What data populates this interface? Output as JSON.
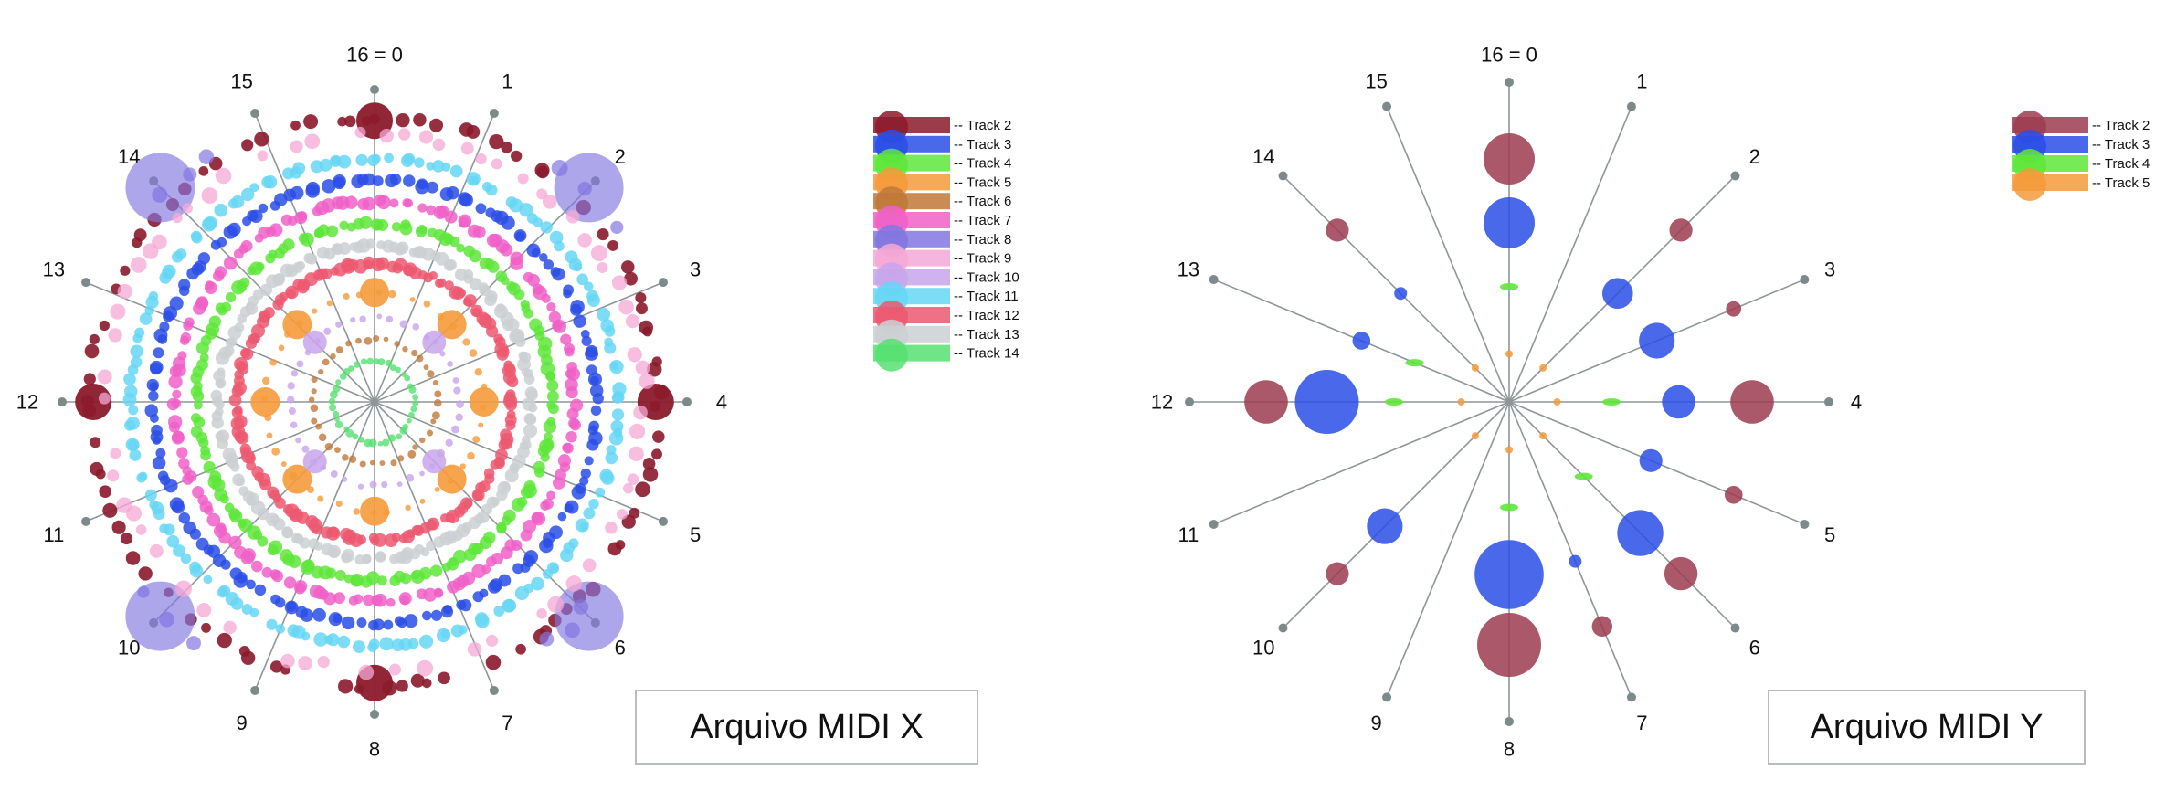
{
  "captions": {
    "left": "Arquivo MIDI X",
    "right": "Arquivo MIDI Y"
  },
  "chart_data": [
    {
      "type": "scatter",
      "subtype": "radial-beat-plot",
      "title": "",
      "caption": "Arquivo MIDI X",
      "spoke_labels": [
        "16 = 0",
        "1",
        "2",
        "3",
        "4",
        "5",
        "6",
        "7",
        "8",
        "9",
        "10",
        "11",
        "12",
        "13",
        "14",
        "15"
      ],
      "legend": {
        "placement": "right",
        "entries": [
          "Track 2",
          "Track 3",
          "Track 4",
          "Track 5",
          "Track 6",
          "Track 7",
          "Track 8",
          "Track 9",
          "Track 10",
          "Track 11",
          "Track 12",
          "Track 13",
          "Track 14"
        ]
      },
      "series_colors": {
        "Track 2": "#8b1a2b",
        "Track 3": "#2a4de6",
        "Track 4": "#5ee63a",
        "Track 5": "#f59a3a",
        "Track 6": "#c07838",
        "Track 7": "#f060c8",
        "Track 8": "#8276e0",
        "Track 9": "#f5a8d6",
        "Track 10": "#c8a4ec",
        "Track 11": "#66d6f5",
        "Track 12": "#ec5870",
        "Track 13": "#cdd0d2",
        "Track 14": "#56e070"
      },
      "series": [
        {
          "name": "Track 2",
          "pattern": "ring",
          "ring_level": 0.91,
          "density": "dense-arcs"
        },
        {
          "name": "Track 8",
          "pattern": "ring",
          "ring_level": 0.95,
          "density": "outer-clusters"
        },
        {
          "name": "Track 9",
          "pattern": "ring",
          "ring_level": 0.86,
          "density": "arcs"
        },
        {
          "name": "Track 11",
          "pattern": "ring",
          "ring_level": 0.78,
          "density": "dense-ring"
        },
        {
          "name": "Track 3",
          "pattern": "ring",
          "ring_level": 0.71,
          "density": "dense-ring"
        },
        {
          "name": "Track 7",
          "pattern": "ring",
          "ring_level": 0.64,
          "density": "dense-ring"
        },
        {
          "name": "Track 4",
          "pattern": "ring",
          "ring_level": 0.57,
          "density": "dense-ring"
        },
        {
          "name": "Track 13",
          "pattern": "ring",
          "ring_level": 0.5,
          "density": "dense-ring"
        },
        {
          "name": "Track 12",
          "pattern": "ring",
          "ring_level": 0.44,
          "density": "dense-ring"
        },
        {
          "name": "Track 5",
          "pattern": "ring",
          "ring_level": 0.35,
          "density": "sparse"
        },
        {
          "name": "Track 10",
          "pattern": "ring",
          "ring_level": 0.27,
          "density": "sparse"
        },
        {
          "name": "Track 6",
          "pattern": "ring",
          "ring_level": 0.2,
          "density": "sparse"
        },
        {
          "name": "Track 14",
          "pattern": "ring",
          "ring_level": 0.13,
          "density": "sparse"
        }
      ],
      "grid": false
    },
    {
      "type": "scatter",
      "subtype": "radial-beat-plot",
      "title": "",
      "caption": "Arquivo MIDI Y",
      "spoke_labels": [
        "16 = 0",
        "1",
        "2",
        "3",
        "4",
        "5",
        "6",
        "7",
        "8",
        "9",
        "10",
        "11",
        "12",
        "13",
        "14",
        "15"
      ],
      "legend": {
        "placement": "top-right",
        "entries": [
          "Track 2",
          "Track 3",
          "Track 4",
          "Track 5"
        ]
      },
      "series_colors": {
        "Track 2": "#9c3c50",
        "Track 3": "#2a4de6",
        "Track 4": "#5ee63a",
        "Track 5": "#f59a3a"
      },
      "series": [
        {
          "name": "Track 2",
          "points": [
            {
              "beat": 0,
              "level": 0.76,
              "weight": 1.0
            },
            {
              "beat": 2,
              "level": 0.76,
              "weight": 0.45
            },
            {
              "beat": 3,
              "level": 0.76,
              "weight": 0.3
            },
            {
              "beat": 4,
              "level": 0.76,
              "weight": 0.85
            },
            {
              "beat": 5,
              "level": 0.76,
              "weight": 0.35
            },
            {
              "beat": 6,
              "level": 0.76,
              "weight": 0.65
            },
            {
              "beat": 7,
              "level": 0.76,
              "weight": 0.4
            },
            {
              "beat": 8,
              "level": 0.76,
              "weight": 1.25
            },
            {
              "beat": 10,
              "level": 0.76,
              "weight": 0.45
            },
            {
              "beat": 12,
              "level": 0.76,
              "weight": 0.85
            },
            {
              "beat": 14,
              "level": 0.76,
              "weight": 0.45
            }
          ]
        },
        {
          "name": "Track 3",
          "points": [
            {
              "beat": 0,
              "level": 0.56,
              "weight": 1.0
            },
            {
              "beat": 2,
              "level": 0.48,
              "weight": 0.6
            },
            {
              "beat": 3,
              "level": 0.5,
              "weight": 0.7
            },
            {
              "beat": 4,
              "level": 0.53,
              "weight": 0.65
            },
            {
              "beat": 5,
              "level": 0.48,
              "weight": 0.45
            },
            {
              "beat": 6,
              "level": 0.58,
              "weight": 0.9
            },
            {
              "beat": 7,
              "level": 0.54,
              "weight": 0.25
            },
            {
              "beat": 8,
              "level": 0.54,
              "weight": 1.35
            },
            {
              "beat": 10,
              "level": 0.55,
              "weight": 0.7
            },
            {
              "beat": 12,
              "level": 0.57,
              "weight": 1.25
            },
            {
              "beat": 13,
              "level": 0.5,
              "weight": 0.35
            },
            {
              "beat": 14,
              "level": 0.48,
              "weight": 0.25
            }
          ]
        },
        {
          "name": "Track 4",
          "points": [
            {
              "beat": 0,
              "level": 0.36,
              "weight": 0.2
            },
            {
              "beat": 4,
              "level": 0.32,
              "weight": 0.2
            },
            {
              "beat": 6,
              "level": 0.33,
              "weight": 0.2
            },
            {
              "beat": 8,
              "level": 0.33,
              "weight": 0.2
            },
            {
              "beat": 12,
              "level": 0.36,
              "weight": 0.2
            },
            {
              "beat": 13,
              "level": 0.32,
              "weight": 0.15
            }
          ]
        },
        {
          "name": "Track 5",
          "points": [
            {
              "beat": 0,
              "level": 0.15,
              "weight": 0.12
            },
            {
              "beat": 2,
              "level": 0.15,
              "weight": 0.12
            },
            {
              "beat": 4,
              "level": 0.15,
              "weight": 0.12
            },
            {
              "beat": 6,
              "level": 0.15,
              "weight": 0.12
            },
            {
              "beat": 8,
              "level": 0.15,
              "weight": 0.12
            },
            {
              "beat": 10,
              "level": 0.15,
              "weight": 0.12
            },
            {
              "beat": 12,
              "level": 0.15,
              "weight": 0.12
            },
            {
              "beat": 14,
              "level": 0.15,
              "weight": 0.12
            }
          ]
        }
      ],
      "grid": false
    }
  ]
}
